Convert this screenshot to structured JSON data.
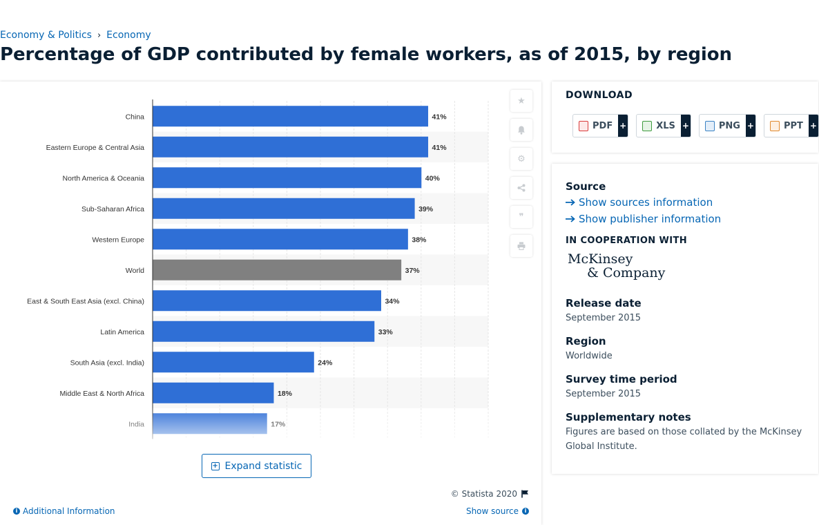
{
  "breadcrumb": {
    "items": [
      "Economy & Politics",
      "Economy"
    ],
    "separator": "›"
  },
  "page_title": "Percentage of GDP contributed by female workers, as of 2015, by region",
  "chart_data": {
    "type": "bar",
    "orientation": "horizontal",
    "categories": [
      "China",
      "Eastern Europe & Central Asia",
      "North America & Oceania",
      "Sub-Saharan Africa",
      "Western Europe",
      "World",
      "East & South East Asia (excl. China)",
      "Latin America",
      "South Asia (excl. India)",
      "Middle East & North Africa",
      "India"
    ],
    "values": [
      41,
      41,
      40,
      39,
      38,
      37,
      34,
      33,
      24,
      18,
      17
    ],
    "data_labels": [
      "41%",
      "41%",
      "40%",
      "39%",
      "38%",
      "37%",
      "34%",
      "33%",
      "24%",
      "18%",
      "17%"
    ],
    "highlight_category": "World",
    "colors": {
      "bar": "#2f6fd6",
      "highlight": "#808080"
    },
    "xlim": [
      0,
      50
    ],
    "grid": true
  },
  "tools": [
    {
      "name": "favorite",
      "icon": "star-icon"
    },
    {
      "name": "notification",
      "icon": "bell-icon"
    },
    {
      "name": "settings",
      "icon": "gear-icon"
    },
    {
      "name": "share",
      "icon": "share-icon"
    },
    {
      "name": "cite",
      "icon": "quote-icon"
    },
    {
      "name": "print",
      "icon": "print-icon"
    }
  ],
  "expand_label": "Expand statistic",
  "copyright": "© Statista 2020",
  "additional_info_label": "Additional Information",
  "show_source_label": "Show source",
  "download": {
    "title": "DOWNLOAD",
    "buttons": [
      {
        "label": "PDF",
        "color": "#d93b3b"
      },
      {
        "label": "XLS",
        "color": "#3f9b3f"
      },
      {
        "label": "PNG",
        "color": "#3b82c4"
      },
      {
        "label": "PPT",
        "color": "#e08a2e"
      }
    ],
    "plus": "+"
  },
  "info": {
    "source_title": "Source",
    "show_sources": "Show sources information",
    "show_publisher": "Show publisher information",
    "cooperation_title": "IN COOPERATION WITH",
    "logo_lines": [
      "McKinsey",
      "& Company"
    ],
    "release_title": "Release date",
    "release_value": "September 2015",
    "region_title": "Region",
    "region_value": "Worldwide",
    "survey_title": "Survey time period",
    "survey_value": "September 2015",
    "notes_title": "Supplementary notes",
    "notes_value": "Figures are based on those collated by the McKinsey Global Institute."
  }
}
